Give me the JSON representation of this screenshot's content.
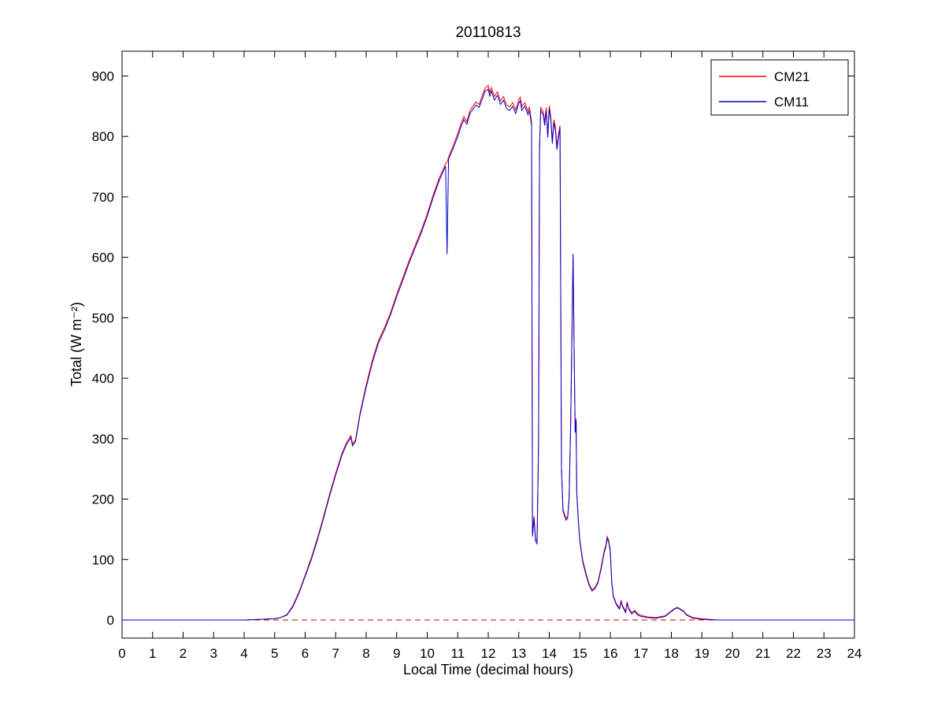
{
  "chart_data": {
    "type": "line",
    "title": "20110813",
    "xlabel": "Local Time (decimal hours)",
    "ylabel": "Total (W m⁻²)",
    "xlim": [
      0,
      24
    ],
    "ylim": [
      0,
      900
    ],
    "xtick_step": 1,
    "ytick_step": 100,
    "grid": false,
    "legend": {
      "position": "top-right",
      "entries": [
        {
          "label": "CM21",
          "color": "#ff0000"
        },
        {
          "label": "CM11",
          "color": "#0000cc"
        }
      ]
    },
    "reference_line": {
      "y": 0,
      "style": "dashed",
      "color": "#cc0000"
    },
    "series_names": [
      "CM21",
      "CM11"
    ],
    "points_format": "[x_decimal_hour, CM21_Wm2, CM11_Wm2]",
    "points": [
      [
        0,
        0,
        0
      ],
      [
        0.5,
        0,
        0
      ],
      [
        1,
        0,
        0
      ],
      [
        1.5,
        0,
        0
      ],
      [
        2,
        0,
        0
      ],
      [
        2.5,
        0,
        0
      ],
      [
        3,
        0,
        0
      ],
      [
        3.5,
        0,
        0
      ],
      [
        4,
        0,
        0
      ],
      [
        4.5,
        1,
        1
      ],
      [
        5,
        2,
        2
      ],
      [
        5.2,
        4,
        4
      ],
      [
        5.4,
        9,
        8
      ],
      [
        5.6,
        24,
        22
      ],
      [
        5.8,
        47,
        45
      ],
      [
        6,
        74,
        72
      ],
      [
        6.2,
        103,
        100
      ],
      [
        6.4,
        135,
        132
      ],
      [
        6.6,
        171,
        168
      ],
      [
        6.8,
        208,
        205
      ],
      [
        7,
        243,
        240
      ],
      [
        7.2,
        275,
        272
      ],
      [
        7.35,
        293,
        290
      ],
      [
        7.5,
        305,
        302
      ],
      [
        7.55,
        291,
        288
      ],
      [
        7.65,
        298,
        295
      ],
      [
        7.8,
        343,
        340
      ],
      [
        8,
        389,
        385
      ],
      [
        8.2,
        429,
        425
      ],
      [
        8.4,
        462,
        458
      ],
      [
        8.6,
        484,
        480
      ],
      [
        8.8,
        509,
        505
      ],
      [
        9,
        539,
        535
      ],
      [
        9.2,
        566,
        562
      ],
      [
        9.4,
        594,
        590
      ],
      [
        9.6,
        619,
        615
      ],
      [
        9.8,
        644,
        640
      ],
      [
        10,
        672,
        668
      ],
      [
        10.2,
        704,
        700
      ],
      [
        10.4,
        732,
        728
      ],
      [
        10.55,
        749,
        745
      ],
      [
        10.6,
        755,
        751
      ],
      [
        10.65,
        757,
        605
      ],
      [
        10.7,
        766,
        762
      ],
      [
        10.85,
        784,
        780
      ],
      [
        11,
        805,
        800
      ],
      [
        11.1,
        820,
        815
      ],
      [
        11.2,
        833,
        828
      ],
      [
        11.3,
        825,
        820
      ],
      [
        11.4,
        843,
        838
      ],
      [
        11.5,
        850,
        845
      ],
      [
        11.6,
        857,
        852
      ],
      [
        11.7,
        853,
        848
      ],
      [
        11.8,
        867,
        862
      ],
      [
        11.9,
        880,
        875
      ],
      [
        12,
        884,
        878
      ],
      [
        12.05,
        872,
        866
      ],
      [
        12.1,
        881,
        875
      ],
      [
        12.2,
        866,
        860
      ],
      [
        12.3,
        874,
        868
      ],
      [
        12.4,
        859,
        853
      ],
      [
        12.5,
        866,
        860
      ],
      [
        12.6,
        852,
        846
      ],
      [
        12.7,
        849,
        843
      ],
      [
        12.8,
        856,
        850
      ],
      [
        12.9,
        844,
        838
      ],
      [
        13,
        861,
        855
      ],
      [
        13.05,
        865,
        859
      ],
      [
        13.1,
        849,
        843
      ],
      [
        13.2,
        856,
        850
      ],
      [
        13.3,
        842,
        836
      ],
      [
        13.35,
        849,
        843
      ],
      [
        13.42,
        824,
        818
      ],
      [
        13.45,
        142,
        138
      ],
      [
        13.5,
        172,
        168
      ],
      [
        13.55,
        134,
        130
      ],
      [
        13.6,
        130,
        126
      ],
      [
        13.65,
        300,
        296
      ],
      [
        13.68,
        782,
        778
      ],
      [
        13.72,
        848,
        843
      ],
      [
        13.8,
        841,
        836
      ],
      [
        13.85,
        823,
        818
      ],
      [
        13.9,
        848,
        843
      ],
      [
        13.95,
        803,
        798
      ],
      [
        14,
        851,
        846
      ],
      [
        14.05,
        833,
        828
      ],
      [
        14.1,
        793,
        788
      ],
      [
        14.15,
        828,
        823
      ],
      [
        14.2,
        815,
        810
      ],
      [
        14.25,
        783,
        778
      ],
      [
        14.3,
        803,
        798
      ],
      [
        14.35,
        818,
        813
      ],
      [
        14.4,
        253,
        250
      ],
      [
        14.45,
        183,
        180
      ],
      [
        14.5,
        175,
        172
      ],
      [
        14.55,
        168,
        165
      ],
      [
        14.6,
        171,
        168
      ],
      [
        14.65,
        203,
        200
      ],
      [
        14.7,
        323,
        320
      ],
      [
        14.75,
        503,
        500
      ],
      [
        14.78,
        600,
        606
      ],
      [
        14.82,
        423,
        420
      ],
      [
        14.85,
        313,
        310
      ],
      [
        14.88,
        333,
        330
      ],
      [
        14.9,
        213,
        210
      ],
      [
        14.95,
        168,
        165
      ],
      [
        15,
        133,
        130
      ],
      [
        15.1,
        98,
        95
      ],
      [
        15.2,
        78,
        75
      ],
      [
        15.3,
        60,
        58
      ],
      [
        15.4,
        50,
        48
      ],
      [
        15.5,
        54,
        52
      ],
      [
        15.6,
        64,
        62
      ],
      [
        15.7,
        88,
        85
      ],
      [
        15.8,
        115,
        112
      ],
      [
        15.85,
        123,
        120
      ],
      [
        15.9,
        138,
        135
      ],
      [
        15.95,
        131,
        128
      ],
      [
        16,
        115,
        112
      ],
      [
        16.05,
        62,
        60
      ],
      [
        16.1,
        40,
        38
      ],
      [
        16.2,
        27,
        25
      ],
      [
        16.3,
        20,
        18
      ],
      [
        16.35,
        32,
        30
      ],
      [
        16.4,
        24,
        22
      ],
      [
        16.5,
        14,
        12
      ],
      [
        16.55,
        30,
        28
      ],
      [
        16.6,
        20,
        18
      ],
      [
        16.7,
        12,
        10
      ],
      [
        16.8,
        16,
        14
      ],
      [
        16.9,
        10,
        8
      ],
      [
        17,
        8,
        6
      ],
      [
        17.2,
        5,
        4
      ],
      [
        17.5,
        4,
        3
      ],
      [
        17.8,
        7,
        6
      ],
      [
        18,
        15,
        14
      ],
      [
        18.1,
        19,
        18
      ],
      [
        18.2,
        21,
        20
      ],
      [
        18.3,
        18,
        17
      ],
      [
        18.4,
        15,
        14
      ],
      [
        18.5,
        9,
        8
      ],
      [
        18.7,
        4,
        3
      ],
      [
        19,
        2,
        1
      ],
      [
        19.5,
        0,
        0
      ],
      [
        20,
        0,
        0
      ],
      [
        21,
        0,
        0
      ],
      [
        22,
        0,
        0
      ],
      [
        23,
        0,
        0
      ],
      [
        24,
        0,
        0
      ]
    ]
  }
}
